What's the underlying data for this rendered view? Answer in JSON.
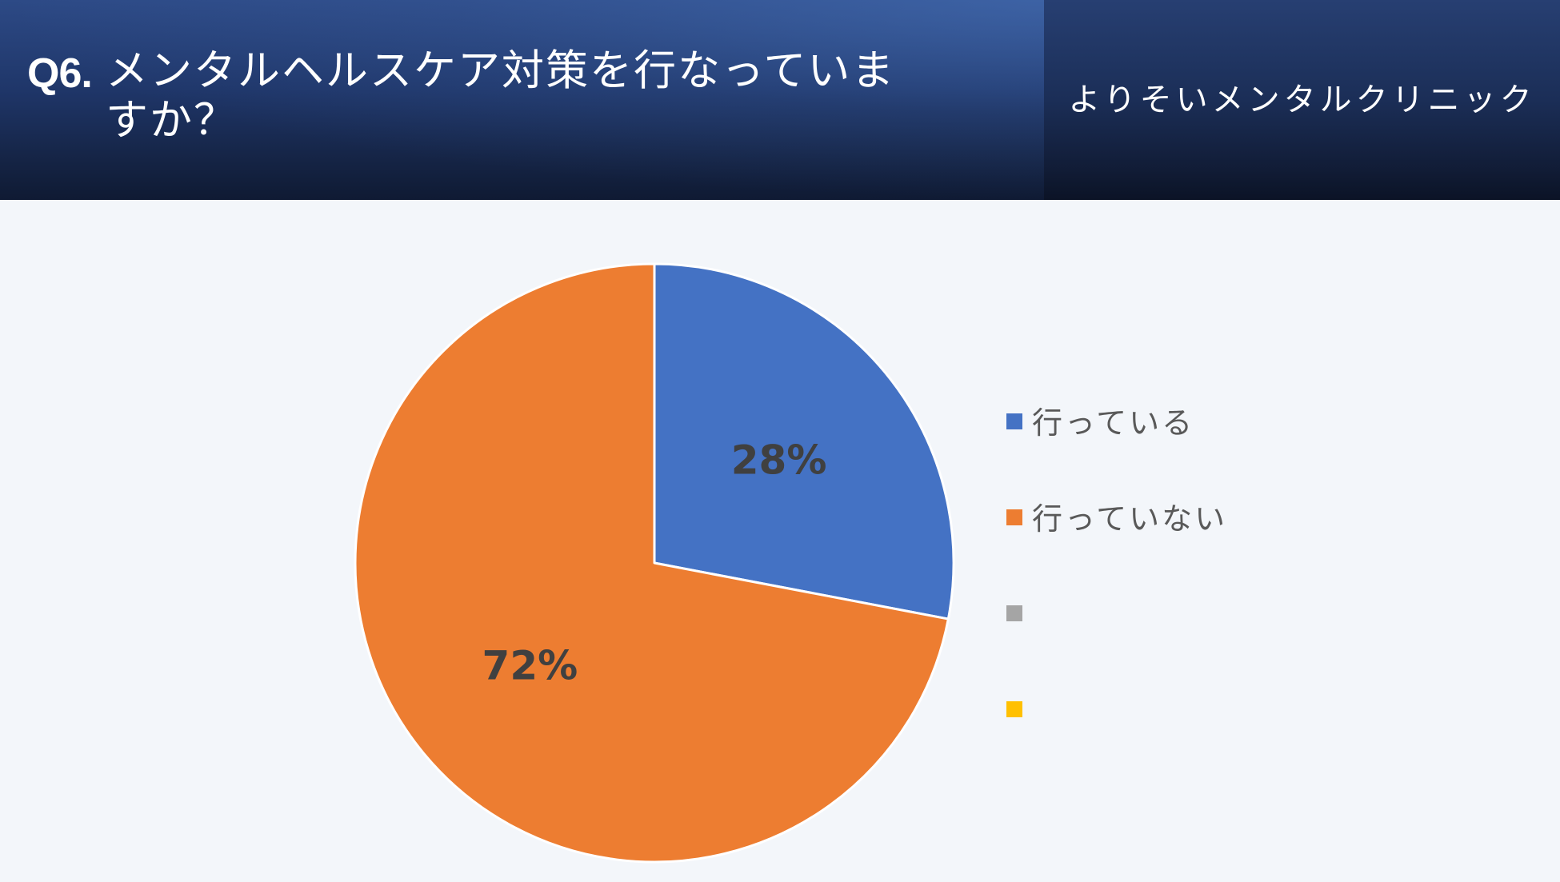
{
  "header": {
    "question_number": "Q6.",
    "question_text": "メンタルヘルスケア対策を行なっていま\nすか？",
    "clinic_name": "よりそいメンタルクリニック"
  },
  "chart_data": {
    "type": "pie",
    "title": "",
    "start_angle_deg": 0,
    "direction": "clockwise",
    "slices": [
      {
        "label": "行っている",
        "value": 28,
        "display": "28%",
        "color": "#4472c4"
      },
      {
        "label": "行っていない",
        "value": 72,
        "display": "72%",
        "color": "#ed7d31"
      }
    ],
    "legend": {
      "placement": "right",
      "entries": [
        {
          "label": "行っている",
          "color": "#4472c4"
        },
        {
          "label": "行っていない",
          "color": "#ed7d31"
        },
        {
          "label": "",
          "color": "#a5a5a5"
        },
        {
          "label": "",
          "color": "#ffc000"
        }
      ]
    },
    "data_label_color": "#404040"
  }
}
